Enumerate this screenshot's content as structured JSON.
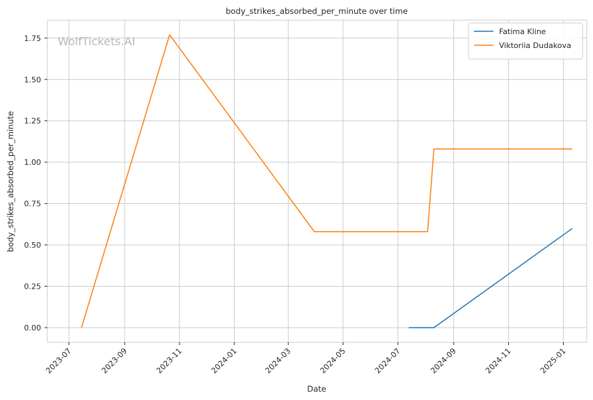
{
  "chart_data": {
    "type": "line",
    "title": "body_strikes_absorbed_per_minute over time",
    "xlabel": "Date",
    "ylabel": "body_strikes_absorbed_per_minute",
    "watermark": "WolfTickets.AI",
    "x_range": [
      "2023-06-07",
      "2025-01-27"
    ],
    "ylim": [
      -0.0885,
      1.8585
    ],
    "grid": true,
    "legend_position": "top-right",
    "x_ticks": [
      {
        "date": "2023-07-01",
        "label": "2023-07"
      },
      {
        "date": "2023-09-01",
        "label": "2023-09"
      },
      {
        "date": "2023-11-01",
        "label": "2023-11"
      },
      {
        "date": "2024-01-01",
        "label": "2024-01"
      },
      {
        "date": "2024-03-01",
        "label": "2024-03"
      },
      {
        "date": "2024-05-01",
        "label": "2024-05"
      },
      {
        "date": "2024-07-01",
        "label": "2024-07"
      },
      {
        "date": "2024-09-01",
        "label": "2024-09"
      },
      {
        "date": "2024-11-01",
        "label": "2024-11"
      },
      {
        "date": "2025-01-01",
        "label": "2025-01"
      }
    ],
    "y_ticks": [
      {
        "value": 0.0,
        "label": "0.00"
      },
      {
        "value": 0.25,
        "label": "0.25"
      },
      {
        "value": 0.5,
        "label": "0.50"
      },
      {
        "value": 0.75,
        "label": "0.75"
      },
      {
        "value": 1.0,
        "label": "1.00"
      },
      {
        "value": 1.25,
        "label": "1.25"
      },
      {
        "value": 1.5,
        "label": "1.50"
      },
      {
        "value": 1.75,
        "label": "1.75"
      }
    ],
    "series": [
      {
        "name": "Fatima Kline",
        "color": "#1f77b4",
        "points": [
          {
            "x": "2024-07-13",
            "y": 0.0
          },
          {
            "x": "2024-08-10",
            "y": 0.0
          },
          {
            "x": "2025-01-11",
            "y": 0.6
          }
        ]
      },
      {
        "name": "Viktoriia Dudakova",
        "color": "#ff7f0e",
        "points": [
          {
            "x": "2023-07-15",
            "y": 0.0
          },
          {
            "x": "2023-10-21",
            "y": 1.77
          },
          {
            "x": "2024-03-30",
            "y": 0.58
          },
          {
            "x": "2024-08-03",
            "y": 0.58
          },
          {
            "x": "2024-08-10",
            "y": 1.08
          },
          {
            "x": "2025-01-11",
            "y": 1.08
          }
        ]
      }
    ]
  }
}
